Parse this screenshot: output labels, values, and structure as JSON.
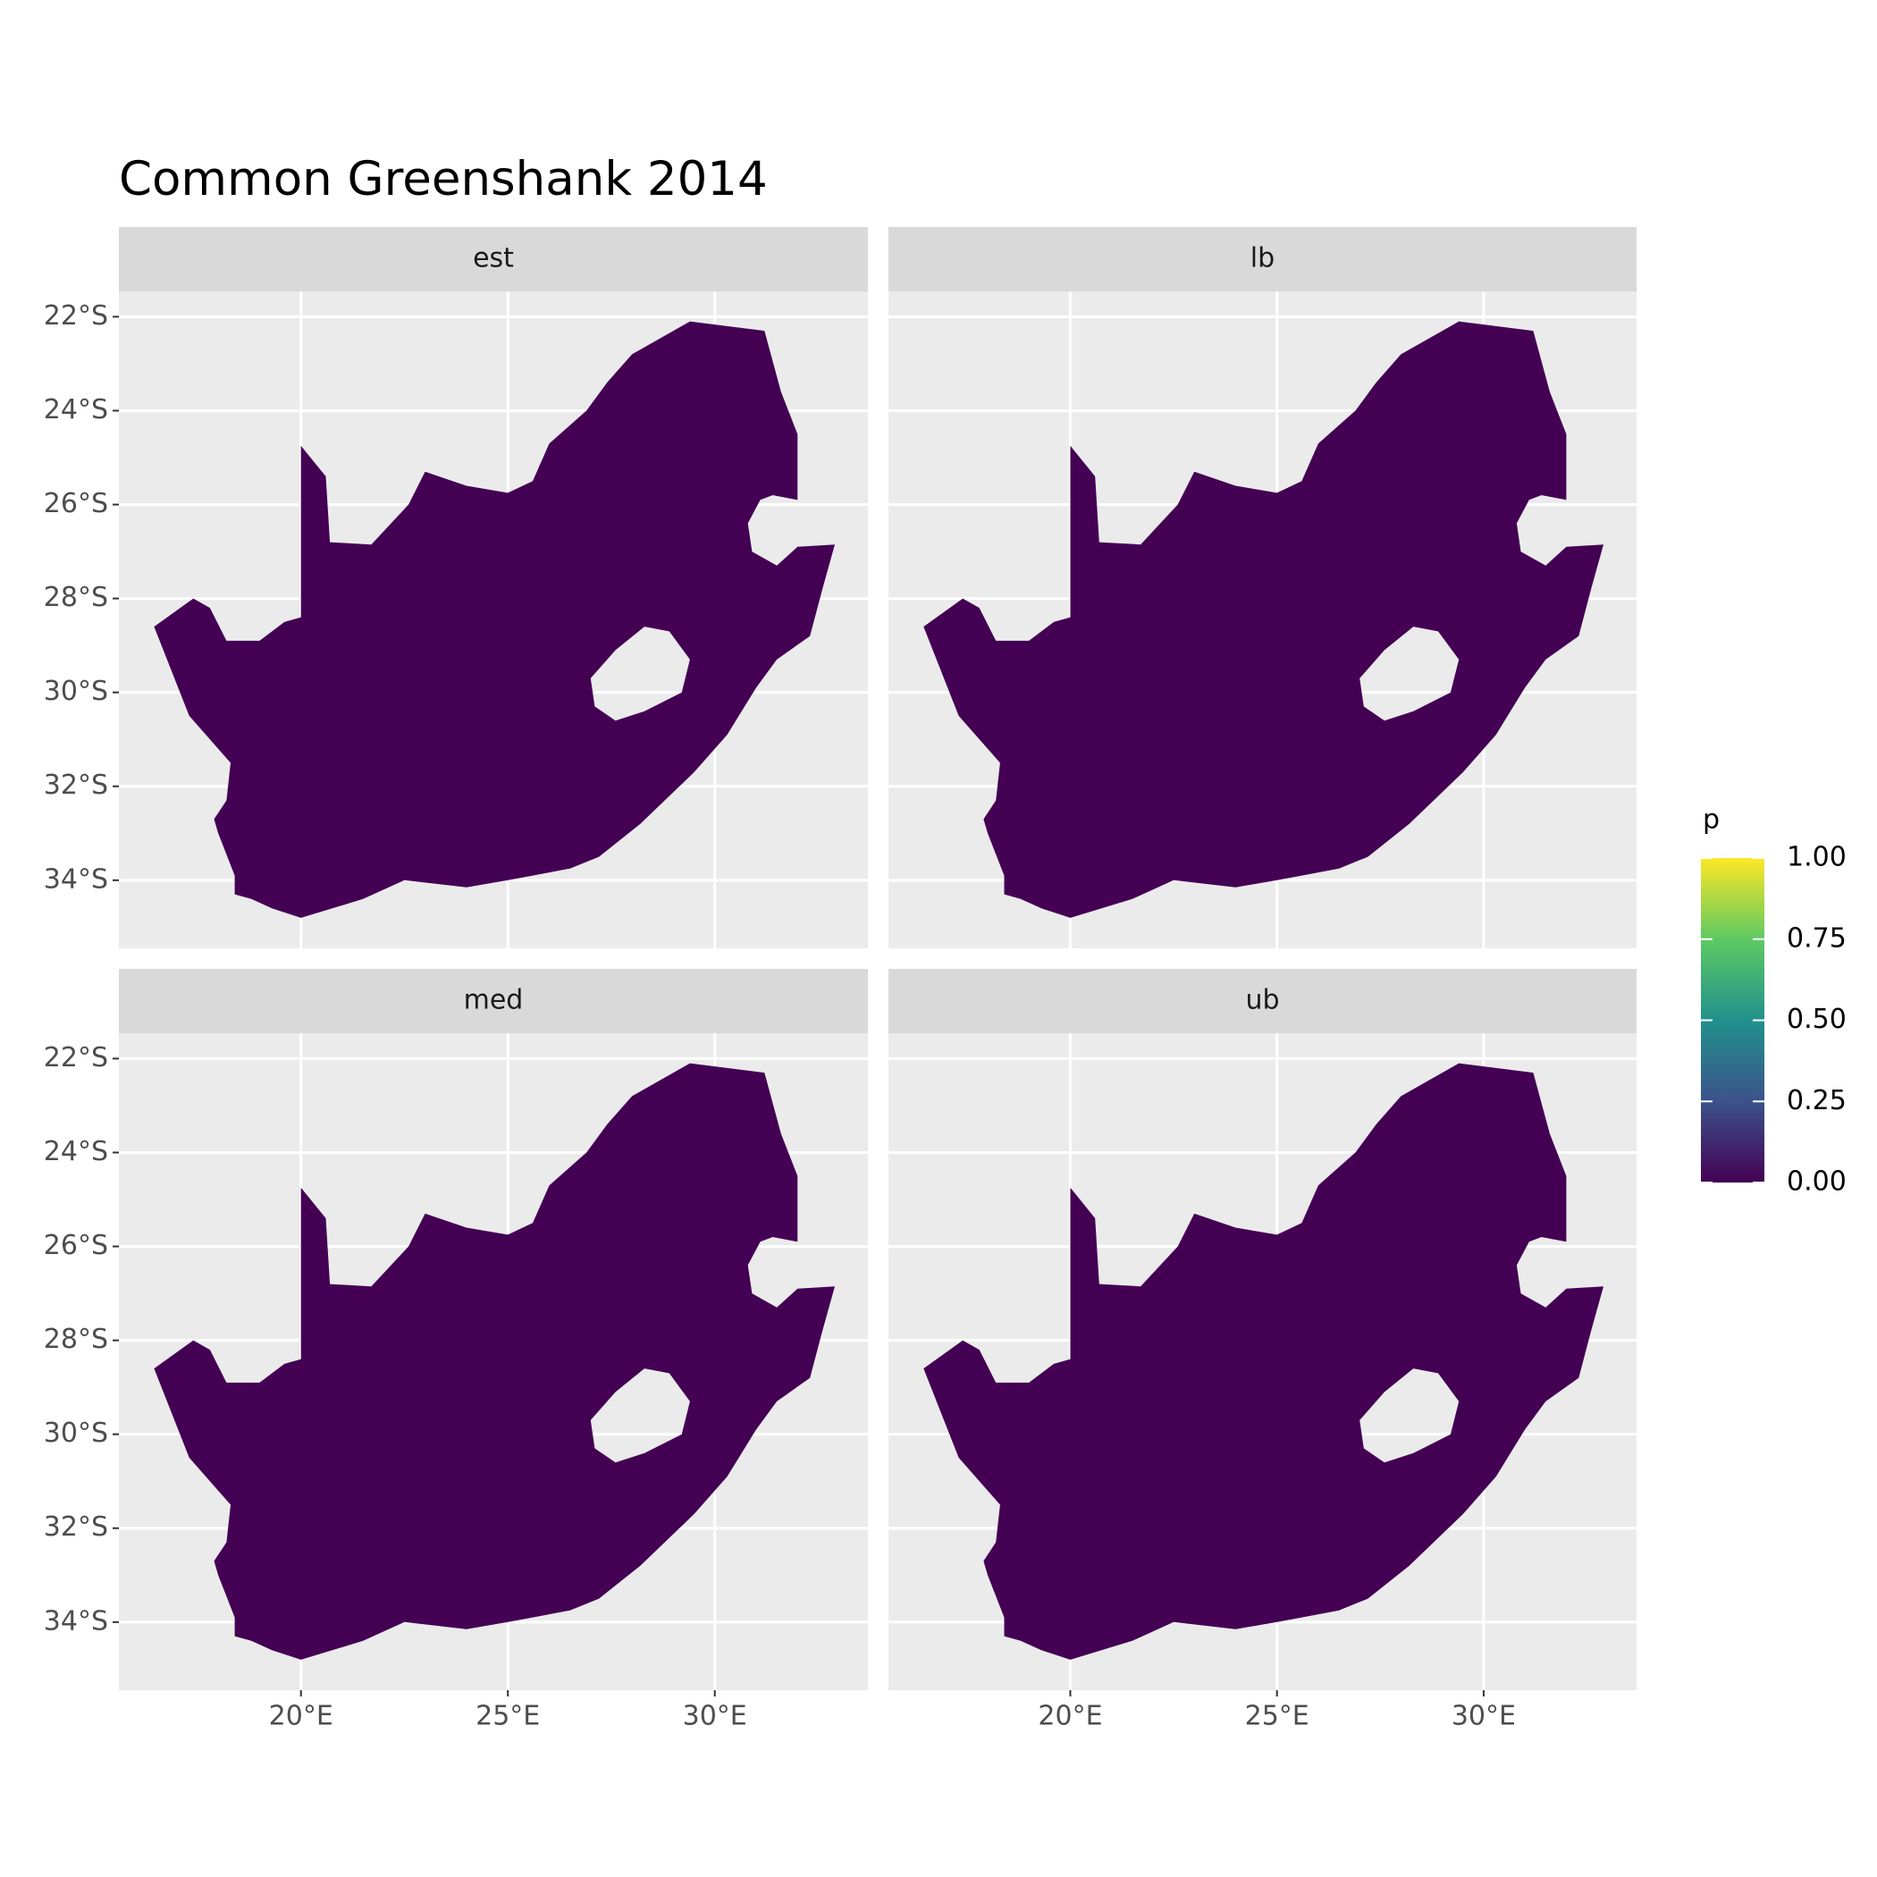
{
  "chart_data": {
    "type": "raster-map",
    "title": "Common Greenshank 2014",
    "facets": [
      "est",
      "lb",
      "med",
      "ub"
    ],
    "xlim": [
      15.6,
      33.7
    ],
    "ylim": [
      -35.45,
      -21.46
    ],
    "xticks": [
      {
        "value": 20,
        "label": "20°E"
      },
      {
        "value": 25,
        "label": "25°E"
      },
      {
        "value": 30,
        "label": "30°E"
      }
    ],
    "yticks": [
      {
        "value": -22,
        "label": "22°S"
      },
      {
        "value": -24,
        "label": "24°S"
      },
      {
        "value": -26,
        "label": "26°S"
      },
      {
        "value": -28,
        "label": "28°S"
      },
      {
        "value": -30,
        "label": "30°S"
      },
      {
        "value": -32,
        "label": "32°S"
      },
      {
        "value": -34,
        "label": "34°S"
      }
    ],
    "grid": true,
    "fill_color": "#440154",
    "legend": {
      "title": "p",
      "limits": [
        0,
        1
      ],
      "ticks": [
        {
          "value": 0,
          "label": "0.00"
        },
        {
          "value": 0.25,
          "label": "0.25"
        },
        {
          "value": 0.5,
          "label": "0.50"
        },
        {
          "value": 0.75,
          "label": "0.75"
        },
        {
          "value": 1,
          "label": "1.00"
        }
      ],
      "colors": [
        "#440154",
        "#3b528b",
        "#21918c",
        "#5ec962",
        "#fde725"
      ]
    }
  }
}
